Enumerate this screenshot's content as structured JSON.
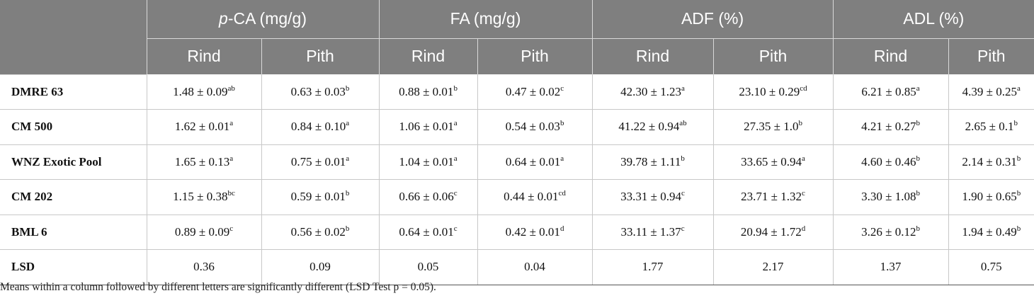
{
  "table": {
    "groups": [
      {
        "prefix": "p",
        "label": "-CA (mg/g)"
      },
      {
        "prefix": "",
        "label": "FA (mg/g)"
      },
      {
        "prefix": "",
        "label": "ADF (%)"
      },
      {
        "prefix": "",
        "label": "ADL (%)"
      }
    ],
    "subheaders": [
      "Rind",
      "Pith",
      "Rind",
      "Pith",
      "Rind",
      "Pith",
      "Rind",
      "Pith"
    ],
    "rows": [
      {
        "name": "DMRE 63",
        "cells": [
          {
            "v": "1.48 ± 0.09",
            "s": "ab"
          },
          {
            "v": "0.63 ± 0.03",
            "s": "b"
          },
          {
            "v": "0.88 ± 0.01",
            "s": "b"
          },
          {
            "v": "0.47 ± 0.02",
            "s": "c"
          },
          {
            "v": "42.30 ± 1.23",
            "s": "a"
          },
          {
            "v": "23.10 ± 0.29",
            "s": "cd"
          },
          {
            "v": "6.21 ± 0.85",
            "s": "a"
          },
          {
            "v": "4.39 ± 0.25",
            "s": "a"
          }
        ]
      },
      {
        "name": "CM 500",
        "cells": [
          {
            "v": "1.62 ± 0.01",
            "s": "a"
          },
          {
            "v": "0.84 ± 0.10",
            "s": "a"
          },
          {
            "v": "1.06 ± 0.01",
            "s": "a"
          },
          {
            "v": "0.54 ± 0.03",
            "s": "b"
          },
          {
            "v": "41.22 ± 0.94",
            "s": "ab"
          },
          {
            "v": "27.35 ± 1.0",
            "s": "b"
          },
          {
            "v": "4.21 ± 0.27",
            "s": "b"
          },
          {
            "v": "2.65 ± 0.1",
            "s": "b"
          }
        ]
      },
      {
        "name": "WNZ Exotic Pool",
        "cells": [
          {
            "v": "1.65 ± 0.13",
            "s": "a"
          },
          {
            "v": "0.75 ± 0.01",
            "s": "a"
          },
          {
            "v": "1.04 ± 0.01",
            "s": "a"
          },
          {
            "v": "0.64 ± 0.01",
            "s": "a"
          },
          {
            "v": "39.78 ± 1.11",
            "s": "b"
          },
          {
            "v": "33.65 ± 0.94",
            "s": "a"
          },
          {
            "v": "4.60 ± 0.46",
            "s": "b"
          },
          {
            "v": "2.14 ± 0.31",
            "s": "b"
          }
        ]
      },
      {
        "name": "CM 202",
        "cells": [
          {
            "v": "1.15 ± 0.38",
            "s": "bc"
          },
          {
            "v": "0.59 ± 0.01",
            "s": "b"
          },
          {
            "v": "0.66 ± 0.06",
            "s": "c"
          },
          {
            "v": "0.44 ± 0.01",
            "s": "cd"
          },
          {
            "v": "33.31 ± 0.94",
            "s": "c"
          },
          {
            "v": "23.71 ± 1.32",
            "s": "c"
          },
          {
            "v": "3.30 ± 1.08",
            "s": "b"
          },
          {
            "v": "1.90 ± 0.65",
            "s": "b"
          }
        ]
      },
      {
        "name": "BML 6",
        "cells": [
          {
            "v": "0.89 ± 0.09",
            "s": "c"
          },
          {
            "v": "0.56 ± 0.02",
            "s": "b"
          },
          {
            "v": "0.64 ± 0.01",
            "s": "c"
          },
          {
            "v": "0.42 ± 0.01",
            "s": "d"
          },
          {
            "v": "33.11 ± 1.37",
            "s": "c"
          },
          {
            "v": "20.94 ± 1.72",
            "s": "d"
          },
          {
            "v": "3.26 ± 0.12",
            "s": "b"
          },
          {
            "v": "1.94 ± 0.49",
            "s": "b"
          }
        ]
      },
      {
        "name": "LSD",
        "cells": [
          {
            "v": "0.36",
            "s": ""
          },
          {
            "v": "0.09",
            "s": ""
          },
          {
            "v": "0.05",
            "s": ""
          },
          {
            "v": "0.04",
            "s": ""
          },
          {
            "v": "1.77",
            "s": ""
          },
          {
            "v": "2.17",
            "s": ""
          },
          {
            "v": "1.37",
            "s": ""
          },
          {
            "v": "0.75",
            "s": ""
          }
        ]
      }
    ]
  },
  "footnote": "Means within a column followed by different letters are significantly different (LSD Test p = 0.05).",
  "colors": {
    "header_bg": "#7f7f7f",
    "header_text": "#ffffff"
  }
}
